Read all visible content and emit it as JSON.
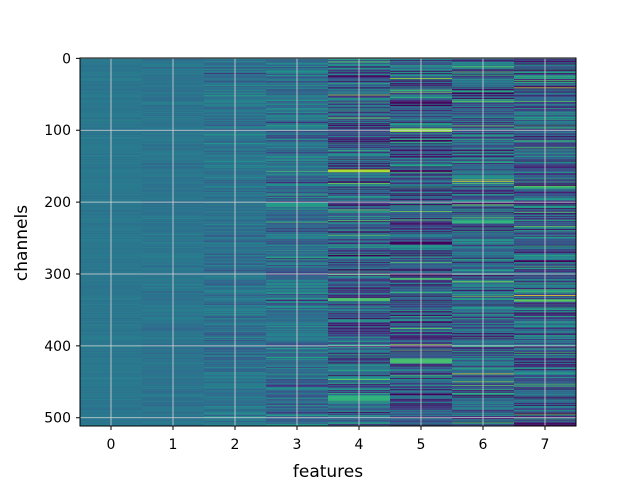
{
  "chart_data": {
    "type": "heatmap",
    "title": "",
    "xlabel": "features",
    "ylabel": "channels",
    "x_ticks": [
      "0",
      "1",
      "2",
      "3",
      "4",
      "5",
      "6",
      "7"
    ],
    "y_ticks": [
      "0",
      "100",
      "200",
      "300",
      "400",
      "500"
    ],
    "xlim": [
      -0.5,
      7.5
    ],
    "ylim": [
      511.5,
      -0.5
    ],
    "rows": 512,
    "columns": 8,
    "colormap": "viridis",
    "grid": true,
    "colors": {
      "grid": "#d8d8d8",
      "axis_spine": "#000000",
      "background": "#ffffff"
    },
    "feature_intensity_profile": [
      {
        "feature": 0,
        "mean": 0.4,
        "spread": 0.015
      },
      {
        "feature": 1,
        "mean": 0.39,
        "spread": 0.025
      },
      {
        "feature": 2,
        "mean": 0.38,
        "spread": 0.06
      },
      {
        "feature": 3,
        "mean": 0.36,
        "spread": 0.1
      },
      {
        "feature": 4,
        "mean": 0.3,
        "spread": 0.17
      },
      {
        "feature": 5,
        "mean": 0.28,
        "spread": 0.19
      },
      {
        "feature": 6,
        "mean": 0.33,
        "spread": 0.17
      },
      {
        "feature": 7,
        "mean": 0.32,
        "spread": 0.18
      }
    ],
    "highlights": [
      {
        "feature": 4,
        "channel_start": 155,
        "channel_end": 158,
        "value": 0.88
      },
      {
        "feature": 5,
        "channel_start": 98,
        "channel_end": 102,
        "value": 0.82
      },
      {
        "feature": 4,
        "channel_start": 470,
        "channel_end": 476,
        "value": 0.65
      },
      {
        "feature": 5,
        "channel_start": 418,
        "channel_end": 424,
        "value": 0.7
      },
      {
        "feature": 6,
        "channel_start": 226,
        "channel_end": 229,
        "value": 0.66
      },
      {
        "feature": 4,
        "channel_start": 334,
        "channel_end": 337,
        "value": 0.72
      },
      {
        "feature": 7,
        "channel_start": 336,
        "channel_end": 338,
        "value": 0.75
      }
    ]
  }
}
